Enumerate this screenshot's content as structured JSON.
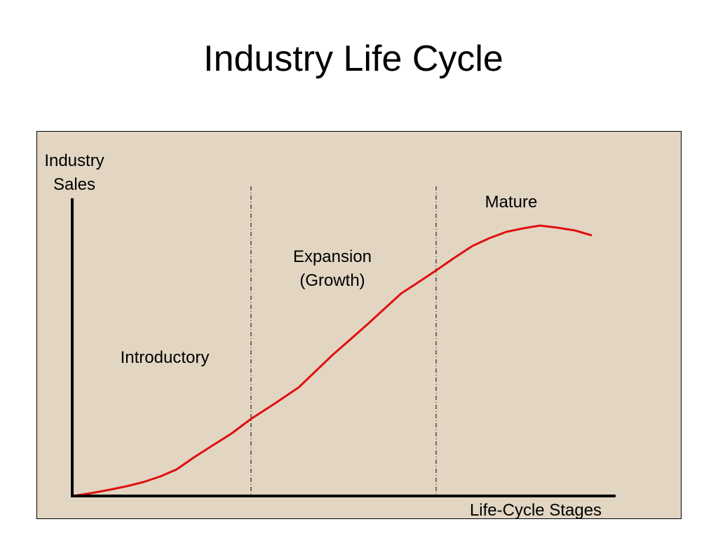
{
  "title": "Industry Life Cycle",
  "diagram": {
    "y_axis_label": [
      "Industry",
      "Sales"
    ],
    "x_axis_label": "Life-Cycle Stages",
    "stages": [
      {
        "name": "introductory",
        "lines": [
          "Introductory"
        ]
      },
      {
        "name": "expansion",
        "lines": [
          "Expansion",
          "(Growth)"
        ]
      },
      {
        "name": "mature",
        "lines": [
          "Mature"
        ]
      }
    ],
    "colors": {
      "background": "#e2d6c3",
      "curve": "#e01010",
      "axes": "#000000",
      "stage_divider": "#000000"
    }
  }
}
